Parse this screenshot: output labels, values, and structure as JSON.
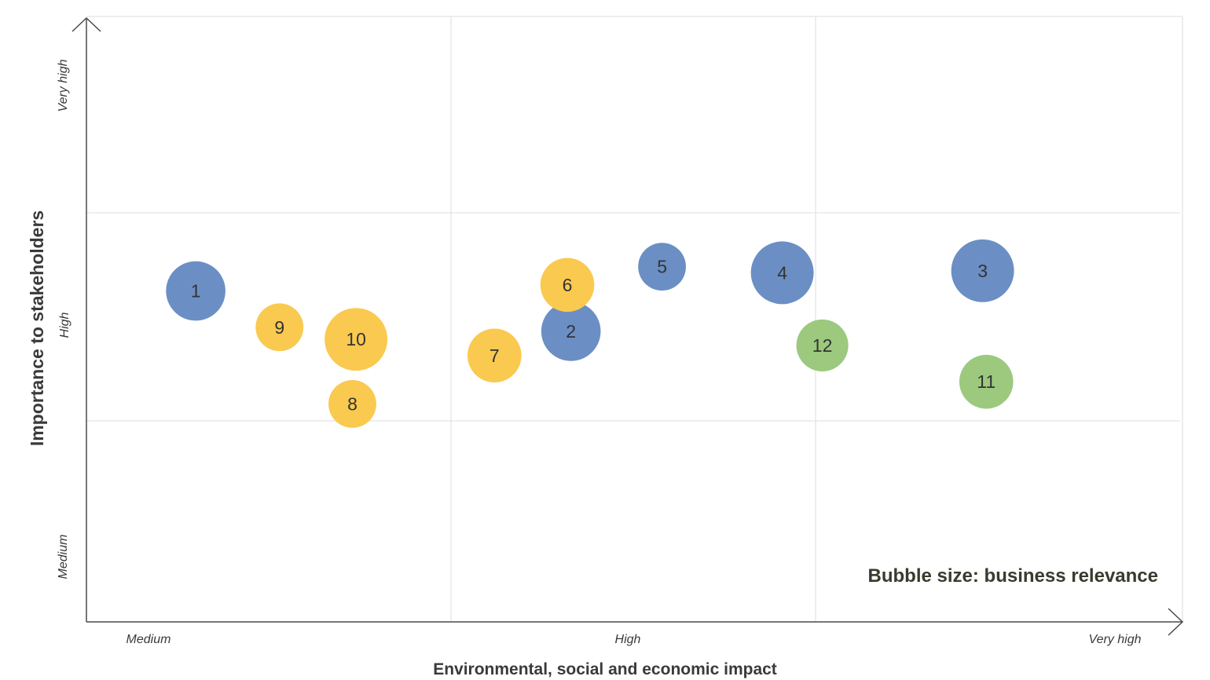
{
  "chart_data": {
    "type": "scatter",
    "subtype": "bubble",
    "xlabel": "Environmental, social and economic impact",
    "ylabel": "Importance to stakeholders",
    "x_ticks": [
      "Medium",
      "High",
      "Very high"
    ],
    "y_ticks": [
      "Medium",
      "High",
      "Very high"
    ],
    "xlim": [
      0,
      3
    ],
    "ylim": [
      0,
      3
    ],
    "grid": true,
    "note": "Bubble size: business relevance",
    "colors": {
      "blue": "#6b8fc4",
      "yellow": "#fac94f",
      "green": "#9cc97e"
    },
    "points": [
      {
        "label": "1",
        "x": 0.3,
        "y": 1.64,
        "size": 0.85,
        "color": "blue"
      },
      {
        "label": "2",
        "x": 1.33,
        "y": 1.44,
        "size": 0.85,
        "color": "blue"
      },
      {
        "label": "3",
        "x": 2.46,
        "y": 1.74,
        "size": 0.95,
        "color": "blue"
      },
      {
        "label": "4",
        "x": 1.91,
        "y": 1.73,
        "size": 0.95,
        "color": "blue"
      },
      {
        "label": "5",
        "x": 1.58,
        "y": 1.76,
        "size": 0.55,
        "color": "blue"
      },
      {
        "label": "6",
        "x": 1.32,
        "y": 1.67,
        "size": 0.7,
        "color": "yellow"
      },
      {
        "label": "7",
        "x": 1.12,
        "y": 1.32,
        "size": 0.7,
        "color": "yellow"
      },
      {
        "label": "8",
        "x": 0.73,
        "y": 1.08,
        "size": 0.55,
        "color": "yellow"
      },
      {
        "label": "9",
        "x": 0.53,
        "y": 1.46,
        "size": 0.55,
        "color": "yellow"
      },
      {
        "label": "10",
        "x": 0.74,
        "y": 1.4,
        "size": 0.95,
        "color": "yellow"
      },
      {
        "label": "11",
        "x": 2.47,
        "y": 1.19,
        "size": 0.7,
        "color": "green"
      },
      {
        "label": "12",
        "x": 2.02,
        "y": 1.37,
        "size": 0.65,
        "color": "green"
      }
    ]
  }
}
